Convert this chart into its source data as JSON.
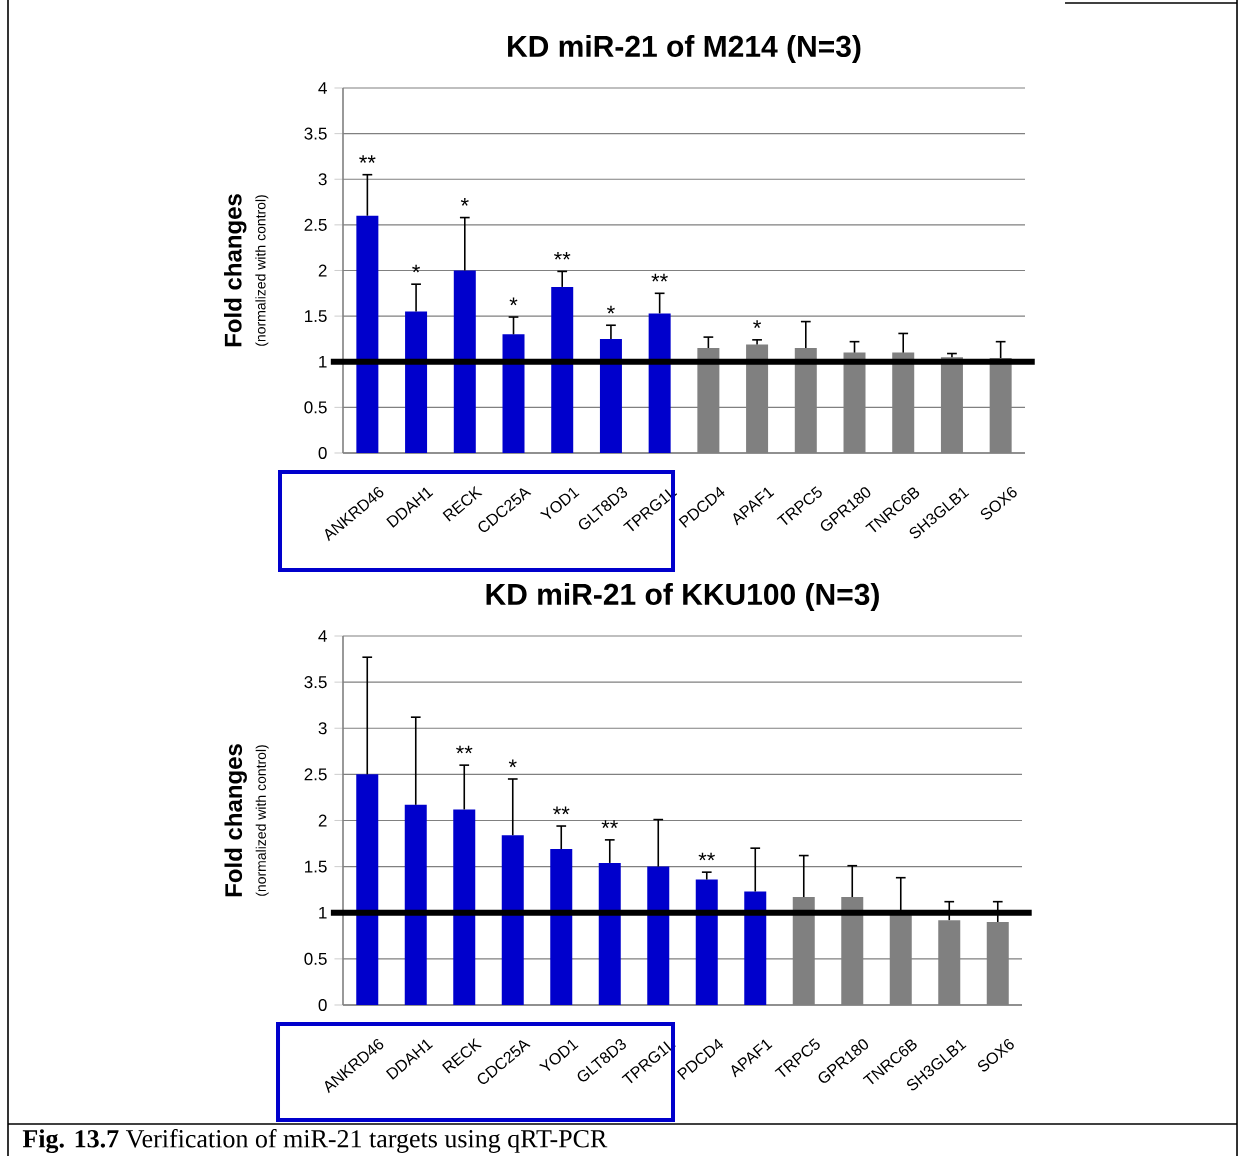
{
  "chart_data": [
    {
      "type": "bar",
      "title": "KD miR-21 of M214 (N=3)",
      "ylabel": "Fold changes",
      "categories": [
        "ANKRD46",
        "DDAH1",
        "RECK",
        "CDC25A",
        "YOD1",
        "GLT8D3",
        "TPRG1L",
        "PDCD4",
        "APAF1",
        "TRPC5",
        "GPR180",
        "TNRC6B",
        "SH3GLB1",
        "SOX6"
      ],
      "values": [
        2.6,
        1.55,
        2.0,
        1.3,
        1.82,
        1.25,
        1.53,
        1.15,
        1.19,
        1.15,
        1.1,
        1.1,
        1.05,
        1.04
      ],
      "errors": [
        [
          2.6,
          3.05
        ],
        [
          1.55,
          1.85
        ],
        [
          2.0,
          2.58
        ],
        [
          1.3,
          1.49
        ],
        [
          1.82,
          1.99
        ],
        [
          1.25,
          1.4
        ],
        [
          1.53,
          1.75
        ],
        [
          1.15,
          1.27
        ],
        [
          1.19,
          1.24
        ],
        [
          1.15,
          1.44
        ],
        [
          1.1,
          1.22
        ],
        [
          1.1,
          1.31
        ],
        [
          1.05,
          1.09
        ],
        [
          1.04,
          1.22
        ]
      ],
      "colors": [
        "#0000cc",
        "#0000cc",
        "#0000cc",
        "#0000cc",
        "#0000cc",
        "#0000cc",
        "#0000cc",
        "#808080",
        "#808080",
        "#808080",
        "#808080",
        "#808080",
        "#808080",
        "#808080"
      ],
      "ylim": [
        0,
        4
      ],
      "yticks": [
        0,
        0.5,
        1,
        1.5,
        2,
        2.5,
        3,
        3.5,
        4
      ],
      "grid": "y",
      "ref_lines": [
        {
          "axis": "y",
          "value": 1,
          "color": "#000000"
        }
      ],
      "annotations": [
        "(normalized with control)",
        {
          "text": "**",
          "x": "ANKRD46",
          "y": 3.05
        },
        {
          "text": "*",
          "x": "DDAH1",
          "y": 1.85
        },
        {
          "text": "*",
          "x": "RECK",
          "y": 2.58
        },
        {
          "text": "*",
          "x": "CDC25A",
          "y": 1.49
        },
        {
          "text": "**",
          "x": "YOD1",
          "y": 1.99
        },
        {
          "text": "*",
          "x": "GLT8D3",
          "y": 1.4
        },
        {
          "text": "**",
          "x": "TPRG1L",
          "y": 1.75
        },
        {
          "text": "*",
          "x": "APAF1",
          "y": 1.24
        }
      ]
    },
    {
      "type": "bar",
      "title": "KD miR-21 of KKU100 (N=3)",
      "ylabel": "Fold changes",
      "categories": [
        "ANKRD46",
        "DDAH1",
        "RECK",
        "CDC25A",
        "YOD1",
        "GLT8D3",
        "TPRG1L",
        "PDCD4",
        "APAF1",
        "TRPC5",
        "GPR180",
        "TNRC6B",
        "SH3GLB1",
        "SOX6"
      ],
      "values": [
        2.5,
        2.17,
        2.12,
        1.84,
        1.69,
        1.54,
        1.5,
        1.36,
        1.23,
        1.17,
        1.17,
        1.0,
        0.92,
        0.9
      ],
      "errors": [
        [
          2.5,
          3.77
        ],
        [
          2.17,
          3.12
        ],
        [
          2.12,
          2.6
        ],
        [
          1.84,
          2.45
        ],
        [
          1.69,
          1.94
        ],
        [
          1.54,
          1.79
        ],
        [
          1.5,
          2.01
        ],
        [
          1.36,
          1.44
        ],
        [
          1.23,
          1.7
        ],
        [
          1.17,
          1.62
        ],
        [
          1.17,
          1.51
        ],
        [
          1.0,
          1.38
        ],
        [
          0.92,
          1.12
        ],
        [
          0.9,
          1.12
        ]
      ],
      "colors": [
        "#0000cc",
        "#0000cc",
        "#0000cc",
        "#0000cc",
        "#0000cc",
        "#0000cc",
        "#0000cc",
        "#0000cc",
        "#0000cc",
        "#808080",
        "#808080",
        "#808080",
        "#808080",
        "#808080"
      ],
      "ylim": [
        0,
        4
      ],
      "yticks": [
        0,
        0.5,
        1,
        1.5,
        2,
        2.5,
        3,
        3.5,
        4
      ],
      "grid": "y",
      "ref_lines": [
        {
          "axis": "y",
          "value": 1,
          "color": "#000000"
        }
      ],
      "annotations": [
        "(normalized with control)",
        "**Fig. 13.7** Verification of miR-21 targets using qRT-PCR",
        {
          "text": "**",
          "x": "RECK",
          "y": 2.6
        },
        {
          "text": "*",
          "x": "CDC25A",
          "y": 2.45
        },
        {
          "text": "**",
          "x": "YOD1",
          "y": 1.94
        },
        {
          "text": "**",
          "x": "GLT8D3",
          "y": 1.79
        },
        {
          "text": "**",
          "x": "PDCD4",
          "y": 1.44
        }
      ]
    }
  ]
}
